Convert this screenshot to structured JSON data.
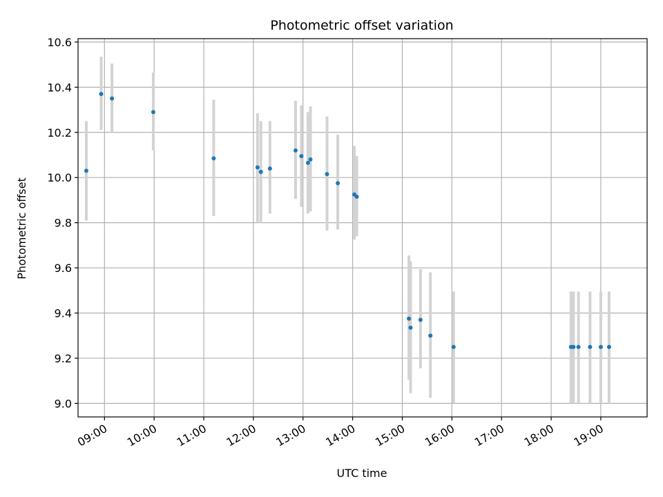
{
  "chart_data": {
    "type": "scatter",
    "title": "Photometric offset variation",
    "xlabel": "UTC time",
    "ylabel": "Photometric offset",
    "grid": true,
    "x_ticks": [
      "09:00",
      "10:00",
      "11:00",
      "12:00",
      "13:00",
      "14:00",
      "15:00",
      "16:00",
      "17:00",
      "18:00",
      "19:00"
    ],
    "y_ticks": [
      "9.0",
      "9.2",
      "9.4",
      "9.6",
      "9.8",
      "10.0",
      "10.2",
      "10.4",
      "10.6"
    ],
    "xlim": [
      "08:28",
      "19:56"
    ],
    "ylim": [
      8.94,
      10.615
    ],
    "colors": {
      "point": "#1f77b4",
      "errorbar": "#d3d3d3",
      "grid": "#b0b0b0"
    },
    "series": [
      {
        "points": [
          {
            "x": "08:38",
            "y": 10.03,
            "lo": 9.81,
            "hi": 10.25
          },
          {
            "x": "08:56",
            "y": 10.37,
            "lo": 10.21,
            "hi": 10.535
          },
          {
            "x": "09:09",
            "y": 10.35,
            "lo": 10.2,
            "hi": 10.505
          },
          {
            "x": "09:59",
            "y": 10.29,
            "lo": 10.12,
            "hi": 10.465
          },
          {
            "x": "11:12",
            "y": 10.085,
            "lo": 9.83,
            "hi": 10.345
          },
          {
            "x": "12:05",
            "y": 10.045,
            "lo": 9.8,
            "hi": 10.285
          },
          {
            "x": "12:09",
            "y": 10.025,
            "lo": 9.8,
            "hi": 10.25
          },
          {
            "x": "12:20",
            "y": 10.04,
            "lo": 9.84,
            "hi": 10.25
          },
          {
            "x": "12:51",
            "y": 10.12,
            "lo": 9.905,
            "hi": 10.34
          },
          {
            "x": "12:58",
            "y": 10.095,
            "lo": 9.87,
            "hi": 10.32
          },
          {
            "x": "13:06",
            "y": 10.065,
            "lo": 9.84,
            "hi": 10.29
          },
          {
            "x": "13:09",
            "y": 10.08,
            "lo": 9.85,
            "hi": 10.315
          },
          {
            "x": "13:29",
            "y": 10.015,
            "lo": 9.765,
            "hi": 10.27
          },
          {
            "x": "13:42",
            "y": 9.975,
            "lo": 9.77,
            "hi": 10.19
          },
          {
            "x": "14:02",
            "y": 9.925,
            "lo": 9.725,
            "hi": 10.14
          },
          {
            "x": "14:05",
            "y": 9.915,
            "lo": 9.74,
            "hi": 10.095
          },
          {
            "x": "15:08",
            "y": 9.375,
            "lo": 9.105,
            "hi": 9.655
          },
          {
            "x": "15:10",
            "y": 9.335,
            "lo": 9.045,
            "hi": 9.63
          },
          {
            "x": "15:22",
            "y": 9.37,
            "lo": 9.155,
            "hi": 9.595
          },
          {
            "x": "15:34",
            "y": 9.3,
            "lo": 9.025,
            "hi": 9.58
          },
          {
            "x": "16:02",
            "y": 9.25,
            "lo": 9.0,
            "hi": 9.495
          },
          {
            "x": "18:24",
            "y": 9.25,
            "lo": 9.0,
            "hi": 9.495
          },
          {
            "x": "18:27",
            "y": 9.25,
            "lo": 9.0,
            "hi": 9.495
          },
          {
            "x": "18:33",
            "y": 9.25,
            "lo": 9.0,
            "hi": 9.495
          },
          {
            "x": "18:47",
            "y": 9.25,
            "lo": 9.0,
            "hi": 9.495
          },
          {
            "x": "19:00",
            "y": 9.25,
            "lo": 9.0,
            "hi": 9.495
          },
          {
            "x": "19:10",
            "y": 9.25,
            "lo": 9.0,
            "hi": 9.495
          }
        ]
      }
    ]
  }
}
